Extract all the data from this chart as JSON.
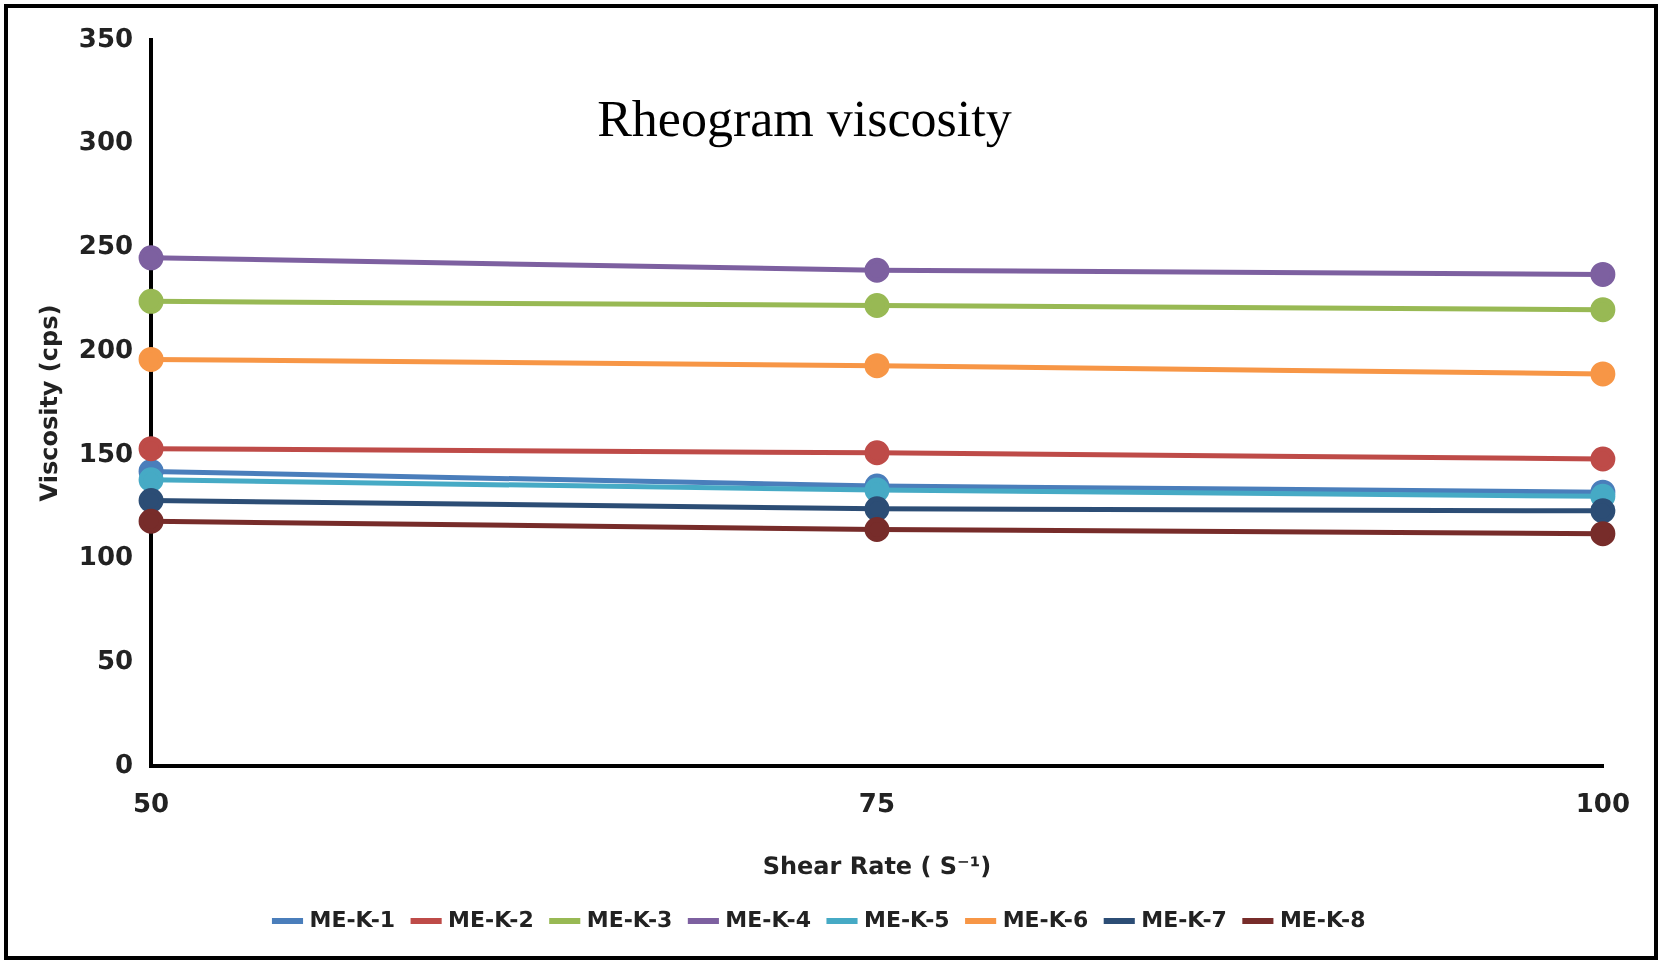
{
  "chart_data": {
    "type": "line",
    "title": "Rheogram viscosity",
    "xlabel": "Shear Rate ( S⁻¹)",
    "ylabel": "Viscosity (cps)",
    "categories": [
      "50",
      "75",
      "100"
    ],
    "ylim": [
      0,
      350
    ],
    "yticks": [
      0,
      50,
      100,
      150,
      200,
      250,
      300,
      350
    ],
    "grid": false,
    "legend": "bottom",
    "marker": "circle",
    "line_style": "solid",
    "series": [
      {
        "name": "ME-K-1",
        "color": "#4a7ebb",
        "values": [
          142,
          135,
          132
        ]
      },
      {
        "name": "ME-K-2",
        "color": "#be4b48",
        "values": [
          153,
          151,
          148
        ]
      },
      {
        "name": "ME-K-3",
        "color": "#98b954",
        "values": [
          224,
          222,
          220
        ]
      },
      {
        "name": "ME-K-4",
        "color": "#7d60a0",
        "values": [
          245,
          239,
          237
        ]
      },
      {
        "name": "ME-K-5",
        "color": "#46aac5",
        "values": [
          138,
          133,
          130
        ]
      },
      {
        "name": "ME-K-6",
        "color": "#f79646",
        "values": [
          196,
          193,
          189
        ]
      },
      {
        "name": "ME-K-7",
        "color": "#2c4d75",
        "values": [
          128,
          124,
          123
        ]
      },
      {
        "name": "ME-K-8",
        "color": "#772c2a",
        "values": [
          118,
          114,
          112
        ]
      }
    ]
  }
}
